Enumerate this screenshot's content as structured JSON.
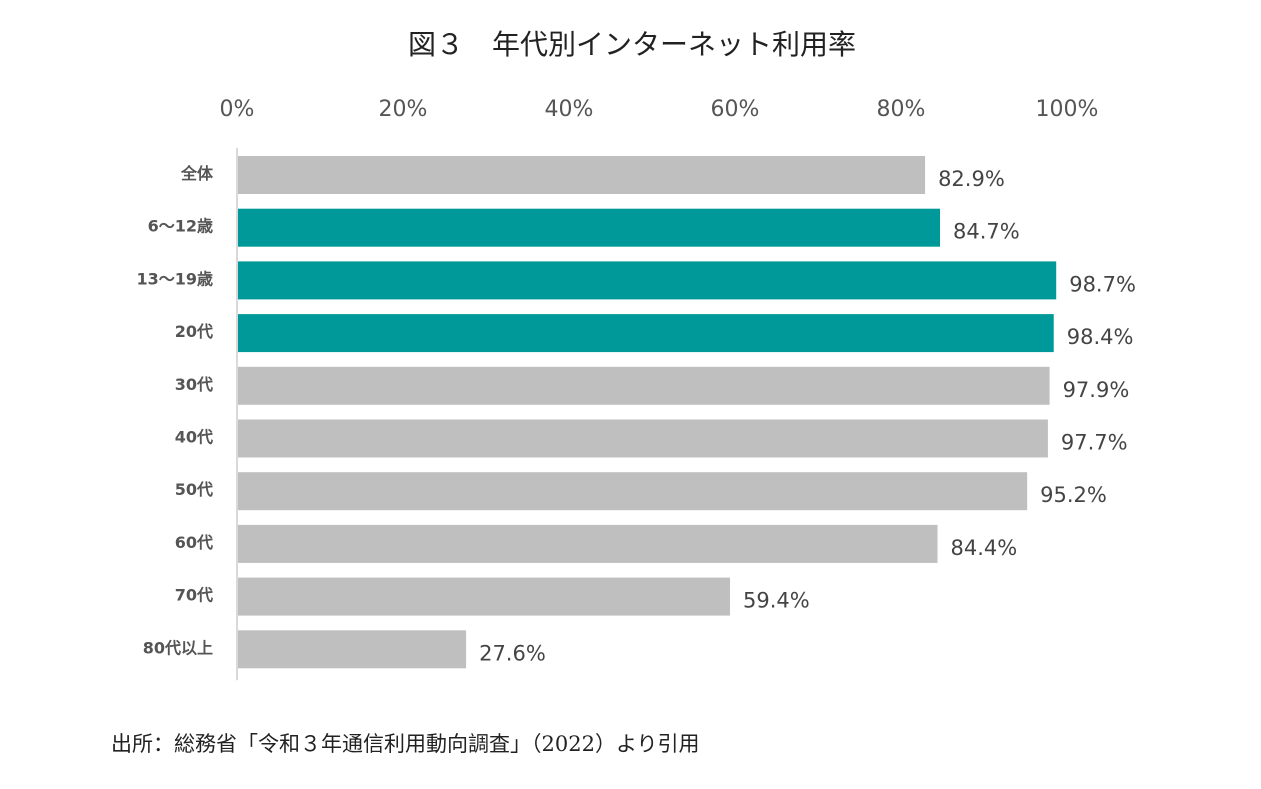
{
  "chart_data": {
    "type": "bar",
    "orientation": "horizontal",
    "title": "図３　年代別インターネット利用率",
    "categories": [
      "全体",
      "6～12歳",
      "13～19歳",
      "20代",
      "30代",
      "40代",
      "50代",
      "60代",
      "70代",
      "80代以上"
    ],
    "values": [
      82.9,
      84.7,
      98.7,
      98.4,
      97.9,
      97.7,
      95.2,
      84.4,
      59.4,
      27.6
    ],
    "value_labels": [
      "82.9%",
      "84.7%",
      "98.7%",
      "98.4%",
      "97.9%",
      "97.7%",
      "95.2%",
      "84.4%",
      "59.4%",
      "27.6%"
    ],
    "xlim": [
      0,
      100
    ],
    "ticks": [
      0,
      20,
      40,
      60,
      80,
      100
    ],
    "tick_labels": [
      "0%",
      "20%",
      "40%",
      "60%",
      "80%",
      "100%"
    ],
    "axis_position": "top",
    "grid": false,
    "highlighted": [
      false,
      true,
      true,
      true,
      false,
      false,
      false,
      false,
      false,
      false
    ],
    "colors": {
      "bar": "#bfbfbf",
      "highlight": "#009999",
      "axis": "#d9d9d9"
    },
    "source": "出所：総務省「令和３年通信利用動向調査」（2022）より引用"
  }
}
